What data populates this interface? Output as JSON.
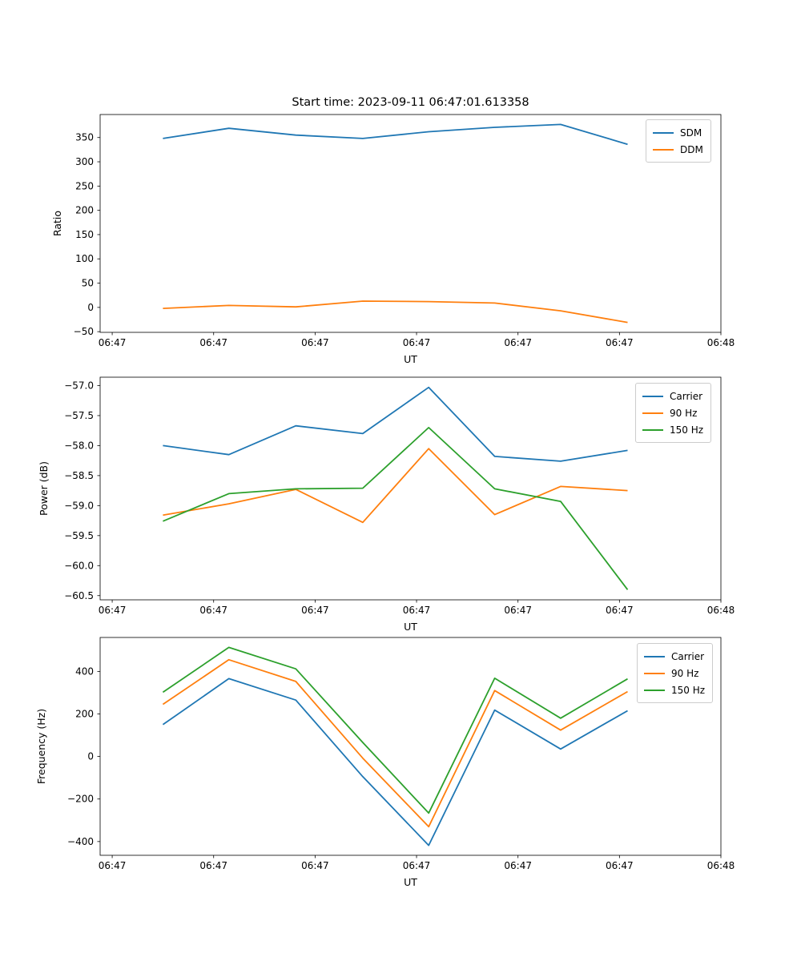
{
  "figure": {
    "title": "Start time: 2023-09-11 06:47:01.613358",
    "background": "#ffffff",
    "text_color": "#000000",
    "axes_edge_color": "#000000",
    "legend_edge_color": "#cccccc"
  },
  "chart_data": {
    "type": "line",
    "x_axis": {
      "label": "UT",
      "lim": [
        -1.19,
        60
      ],
      "tick_values": [
        0,
        10,
        20,
        30,
        40,
        50,
        60
      ],
      "tick_labels": [
        "06:47",
        "06:47",
        "06:47",
        "06:47",
        "06:47",
        "06:47",
        "06:48"
      ],
      "start_time_label": "06:47:00",
      "end_time_label": "06:48:00"
    },
    "x_seconds": [
      5.0,
      11.5,
      18.1,
      24.7,
      31.2,
      37.7,
      44.2,
      50.8
    ],
    "plots": [
      {
        "name": "ratio",
        "ylabel": "Ratio",
        "ylim": [
          -51.4,
          397.4
        ],
        "ytick_values": [
          -50,
          0,
          50,
          100,
          150,
          200,
          250,
          300,
          350
        ],
        "ytick_labels": [
          "−50",
          "0",
          "50",
          "100",
          "150",
          "200",
          "250",
          "300",
          "350"
        ],
        "legend_position": "upper right",
        "grid": false,
        "series": [
          {
            "name": "SDM",
            "color": "#1f77b4",
            "values": [
              348,
              369,
              355,
              348,
              362,
              371,
              377,
              336
            ]
          },
          {
            "name": "DDM",
            "color": "#ff7f0e",
            "values": [
              -2,
              4,
              1,
              13,
              12,
              9,
              -7,
              -31
            ]
          }
        ]
      },
      {
        "name": "power",
        "ylabel": "Power (dB)",
        "ylim": [
          -60.57,
          -56.86
        ],
        "ytick_values": [
          -57.0,
          -57.5,
          -58.0,
          -58.5,
          -59.0,
          -59.5,
          -60.0,
          -60.5
        ],
        "ytick_labels": [
          "−57.0",
          "−57.5",
          "−58.0",
          "−58.5",
          "−59.0",
          "−59.5",
          "−60.0",
          "−60.5"
        ],
        "legend_position": "upper right",
        "grid": false,
        "series": [
          {
            "name": "Carrier",
            "color": "#1f77b4",
            "values": [
              -58.0,
              -58.15,
              -57.67,
              -57.8,
              -57.03,
              -58.18,
              -58.26,
              -58.08
            ]
          },
          {
            "name": "90 Hz",
            "color": "#ff7f0e",
            "values": [
              -59.16,
              -58.97,
              -58.73,
              -59.28,
              -58.05,
              -59.15,
              -58.68,
              -58.75
            ]
          },
          {
            "name": "150 Hz",
            "color": "#2ca02c",
            "values": [
              -59.26,
              -58.8,
              -58.72,
              -58.71,
              -57.7,
              -58.72,
              -58.93,
              -60.4
            ]
          }
        ]
      },
      {
        "name": "frequency",
        "ylabel": "Frequency (Hz)",
        "ylim": [
          -464.6,
          559.6
        ],
        "ytick_values": [
          -400,
          -200,
          0,
          200,
          400
        ],
        "ytick_labels": [
          "−400",
          "−200",
          "0",
          "200",
          "400"
        ],
        "legend_position": "upper right",
        "grid": false,
        "series": [
          {
            "name": "Carrier",
            "color": "#1f77b4",
            "values": [
              150,
              366,
              265,
              -95,
              -418,
              218,
              35,
              215
            ]
          },
          {
            "name": "90 Hz",
            "color": "#ff7f0e",
            "values": [
              245,
              455,
              353,
              -8,
              -330,
              310,
              124,
              305
            ]
          },
          {
            "name": "150 Hz",
            "color": "#2ca02c",
            "values": [
              302,
              513,
              412,
              66,
              -266,
              368,
              180,
              365
            ]
          }
        ]
      }
    ]
  }
}
